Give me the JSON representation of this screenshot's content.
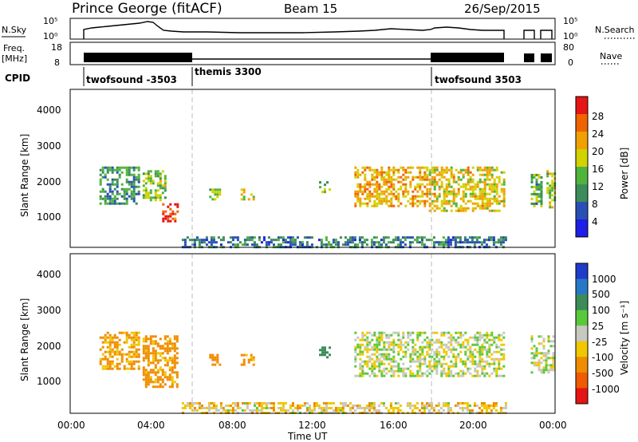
{
  "header": {
    "station": "Prince George (fitACF)",
    "beam": "Beam 15",
    "date": "26/Sep/2015"
  },
  "summary": {
    "nsky_label": "N.Sky",
    "nsky_top": "10^5",
    "nsky_bottom": "10^0",
    "nsearch_label": "N.Search",
    "nsearch_top": "10^5",
    "nsearch_bottom": "10^0",
    "freq_label_1": "Freq.",
    "freq_label_2": "[MHz]",
    "freq_top": "18",
    "freq_bottom": "8",
    "nave_label": "Nave",
    "nave_top": "80",
    "nave_bottom": "0",
    "cpid_label": "CPID",
    "cpid_segments": [
      {
        "label": "twofsound -3503",
        "start_hour": 0.75
      },
      {
        "label": "themis 3300",
        "start_hour": 6.0
      },
      {
        "label": "twofsound 3503",
        "start_hour": 18.0
      }
    ]
  },
  "power_panel": {
    "ylabel": "Slant Range [km]",
    "yticks": [
      "1000",
      "2000",
      "3000",
      "4000"
    ],
    "colorbar_label": "Power [dB]",
    "colorbar_ticks": [
      "4",
      "8",
      "12",
      "16",
      "20",
      "24",
      "28"
    ],
    "colorbar_colors": [
      "#1e1ee6",
      "#2850b4",
      "#3c8c5a",
      "#50b43c",
      "#d2d200",
      "#f0a000",
      "#f06400",
      "#e61414"
    ]
  },
  "velocity_panel": {
    "ylabel": "Slant Range [km]",
    "yticks": [
      "1000",
      "2000",
      "3000",
      "4000"
    ],
    "colorbar_label": "Velocity [m s^-1]",
    "colorbar_ticks": [
      "1000",
      "500",
      "100",
      "25",
      "-25",
      "-100",
      "-500",
      "-1000"
    ],
    "colorbar_colors": [
      "#1e3cc8",
      "#2878c8",
      "#3c8c5a",
      "#5ac83c",
      "#c8c8c0",
      "#f0c800",
      "#f08c00",
      "#f05a00",
      "#e61414"
    ]
  },
  "xaxis": {
    "ticks": [
      "00:00",
      "04:00",
      "08:00",
      "12:00",
      "16:00",
      "20:00",
      "00:00"
    ],
    "label": "Time UT"
  },
  "chart_data": [
    {
      "type": "heatmap",
      "title": "Power",
      "xlabel": "Time UT",
      "ylabel": "Slant Range [km]",
      "xlim": [
        0,
        24
      ],
      "ylim": [
        200,
        4500
      ],
      "colorbar": {
        "label": "Power [dB]",
        "range": [
          0,
          30
        ]
      },
      "regions": [
        {
          "t": [
            0.8,
            2.8
          ],
          "r": [
            1400,
            2400
          ],
          "value": 10
        },
        {
          "t": [
            3.0,
            4.2
          ],
          "r": [
            1500,
            2300
          ],
          "value": 14
        },
        {
          "t": [
            4.0,
            4.8
          ],
          "r": [
            900,
            1400
          ],
          "value": 26
        },
        {
          "t": [
            6.4,
            7.0
          ],
          "r": [
            1500,
            1800
          ],
          "value": 14
        },
        {
          "t": [
            8.0,
            8.7
          ],
          "r": [
            1500,
            1800
          ],
          "value": 16
        },
        {
          "t": [
            12.0,
            12.6
          ],
          "r": [
            1700,
            2000
          ],
          "value": 14
        },
        {
          "t": [
            13.8,
            17.5
          ],
          "r": [
            1300,
            2400
          ],
          "value": 20
        },
        {
          "t": [
            17.6,
            21.4
          ],
          "r": [
            1200,
            2400
          ],
          "value": 18
        },
        {
          "t": [
            22.8,
            23.3
          ],
          "r": [
            1300,
            2200
          ],
          "value": 12
        },
        {
          "t": [
            23.6,
            24.0
          ],
          "r": [
            1300,
            2300
          ],
          "value": 16
        },
        {
          "t": [
            5.0,
            21.5
          ],
          "r": [
            200,
            500
          ],
          "value": 8
        }
      ]
    },
    {
      "type": "heatmap",
      "title": "Velocity",
      "xlabel": "Time UT",
      "ylabel": "Slant Range [km]",
      "xlim": [
        0,
        24
      ],
      "ylim": [
        200,
        4500
      ],
      "colorbar": {
        "label": "Velocity [m s^-1]",
        "range": [
          -1000,
          1000
        ]
      },
      "regions": [
        {
          "t": [
            0.8,
            2.8
          ],
          "r": [
            1400,
            2400
          ],
          "value": -120
        },
        {
          "t": [
            3.0,
            4.8
          ],
          "r": [
            900,
            2300
          ],
          "value": -150
        },
        {
          "t": [
            6.4,
            7.0
          ],
          "r": [
            1500,
            1800
          ],
          "value": -200
        },
        {
          "t": [
            8.0,
            8.7
          ],
          "r": [
            1500,
            1800
          ],
          "value": -150
        },
        {
          "t": [
            12.0,
            12.6
          ],
          "r": [
            1700,
            2000
          ],
          "value": 200
        },
        {
          "t": [
            13.8,
            21.4
          ],
          "r": [
            1200,
            2400
          ],
          "value": 0
        },
        {
          "t": [
            22.8,
            24.0
          ],
          "r": [
            1300,
            2300
          ],
          "value": 0
        },
        {
          "t": [
            5.0,
            21.5
          ],
          "r": [
            200,
            500
          ],
          "value": -50
        }
      ]
    }
  ]
}
